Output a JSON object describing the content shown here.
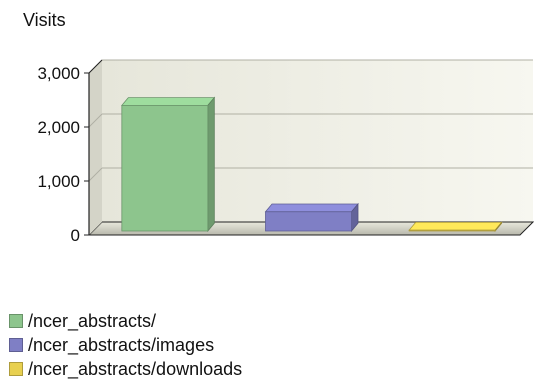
{
  "chart_data": {
    "type": "bar",
    "ylabel": "Visits",
    "ylim": [
      0,
      3000
    ],
    "yticks": [
      0,
      1000,
      2000,
      3000
    ],
    "ytick_labels": [
      "0",
      "1,000",
      "2,000",
      "3,000"
    ],
    "grid": true,
    "legend_position": "bottom-left",
    "categories": [
      "/ncer_abstracts/",
      "/ncer_abstracts/images",
      "/ncer_abstracts/downloads"
    ],
    "values": [
      2400,
      430,
      90
    ],
    "colors": [
      "#8dc58d",
      "#7f7fc5",
      "#e8d050"
    ]
  }
}
